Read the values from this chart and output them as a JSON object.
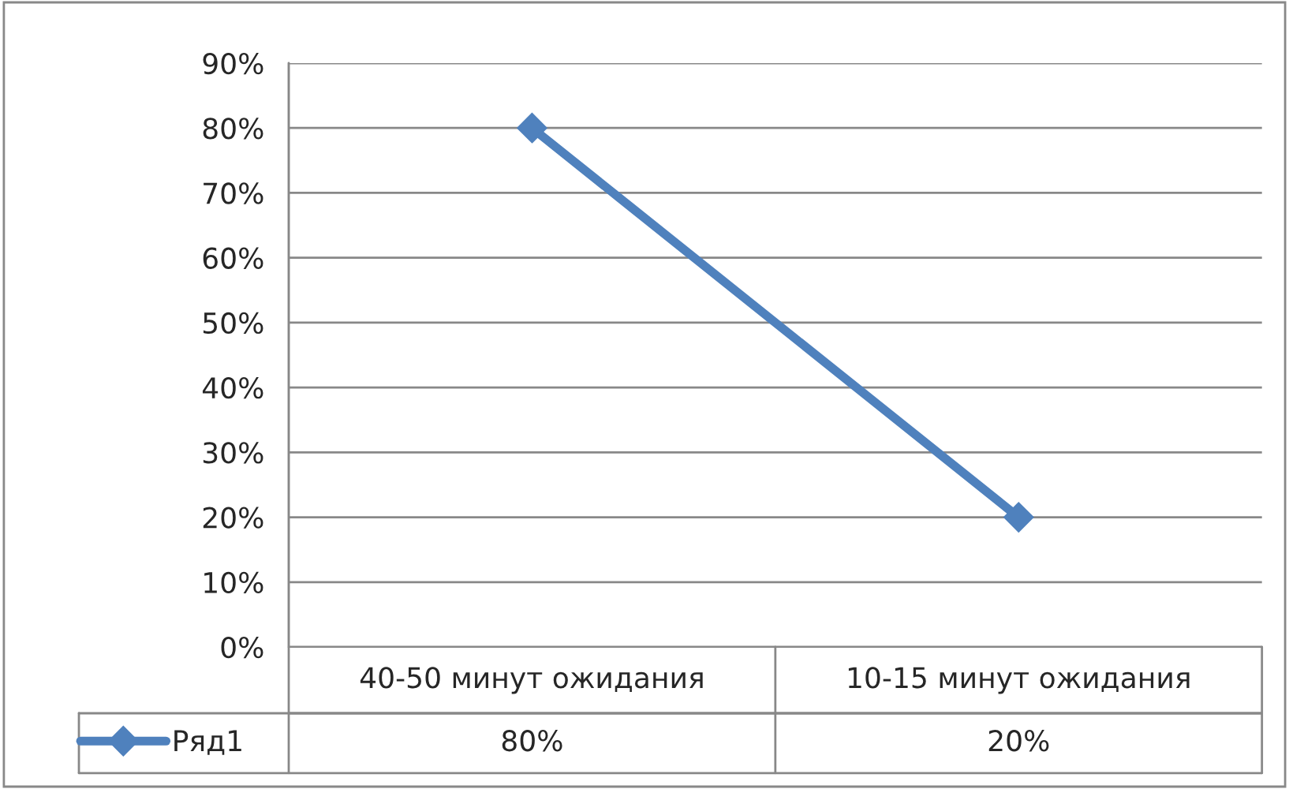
{
  "chart_data": {
    "type": "line",
    "categories": [
      "40-50 минут ожидания",
      "10-15 минут ожидания"
    ],
    "series": [
      {
        "name": "Ряд1",
        "color": "#4f81bd",
        "values": [
          80,
          20
        ],
        "value_labels": [
          "80%",
          "20%"
        ]
      }
    ],
    "ylim": [
      0,
      90
    ],
    "yticks": [
      {
        "value": 0,
        "label": "0%"
      },
      {
        "value": 10,
        "label": "10%"
      },
      {
        "value": 20,
        "label": "20%"
      },
      {
        "value": 30,
        "label": "30%"
      },
      {
        "value": 40,
        "label": "40%"
      },
      {
        "value": 50,
        "label": "50%"
      },
      {
        "value": 60,
        "label": "60%"
      },
      {
        "value": 70,
        "label": "70%"
      },
      {
        "value": 80,
        "label": "80%"
      },
      {
        "value": 90,
        "label": "90%"
      }
    ],
    "grid": "y",
    "marker": "diamond",
    "line_style": "solid",
    "legend": "bottom left"
  }
}
